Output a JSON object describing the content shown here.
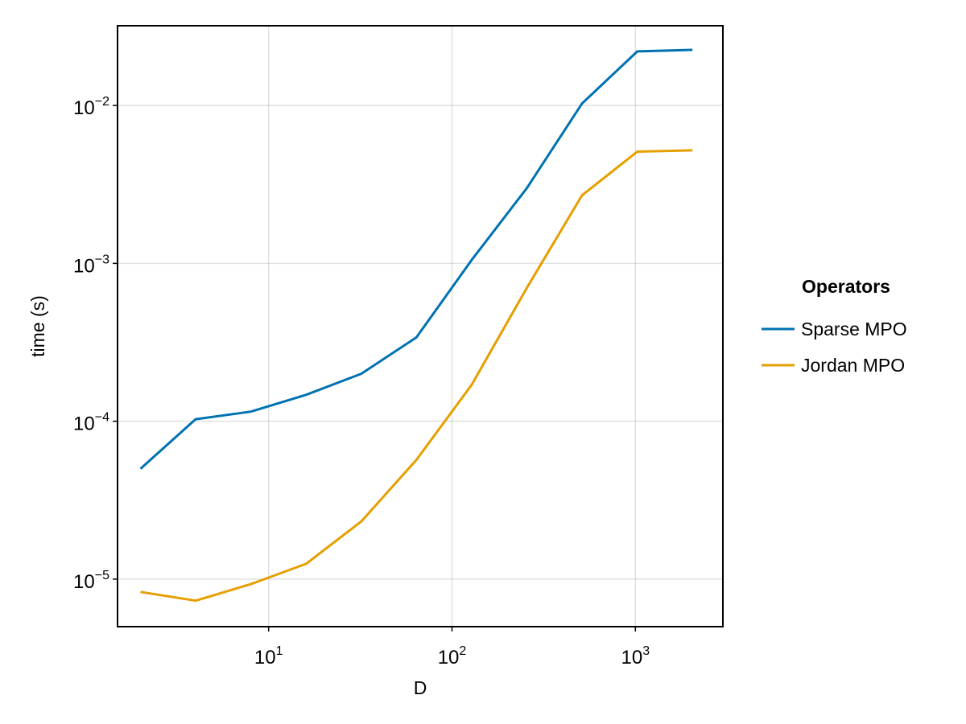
{
  "chart_data": {
    "type": "line",
    "xlabel": "D",
    "ylabel": "time (s)",
    "xscale": "log10",
    "yscale": "log10",
    "xlim": [
      1.5,
      3000
    ],
    "ylim": [
      5e-06,
      0.032
    ],
    "xticks": [
      {
        "value": 10,
        "base": "10",
        "exp": "1"
      },
      {
        "value": 100,
        "base": "10",
        "exp": "2"
      },
      {
        "value": 1000,
        "base": "10",
        "exp": "3"
      }
    ],
    "yticks": [
      {
        "value": 1e-05,
        "base": "10",
        "exp": "−5"
      },
      {
        "value": 0.0001,
        "base": "10",
        "exp": "−4"
      },
      {
        "value": 0.001,
        "base": "10",
        "exp": "−3"
      },
      {
        "value": 0.01,
        "base": "10",
        "exp": "−2"
      }
    ],
    "grid": true,
    "legend": {
      "title": "Operators",
      "placement": "right"
    },
    "series": [
      {
        "name": "Sparse MPO",
        "color": "#0072b2",
        "x": [
          2,
          4,
          8,
          16,
          32,
          64,
          128,
          256,
          512,
          1024,
          2048
        ],
        "y": [
          5e-05,
          0.000103,
          0.000115,
          0.000147,
          0.0002,
          0.00034,
          0.00105,
          0.003,
          0.0103,
          0.022,
          0.0225
        ]
      },
      {
        "name": "Jordan MPO",
        "color": "#e69f00",
        "x": [
          2,
          4,
          8,
          16,
          32,
          64,
          128,
          256,
          512,
          1024,
          2048
        ],
        "y": [
          8.3e-06,
          7.3e-06,
          9.3e-06,
          1.25e-05,
          2.32e-05,
          5.7e-05,
          0.00017,
          0.0007,
          0.0027,
          0.0051,
          0.0052
        ]
      }
    ]
  }
}
